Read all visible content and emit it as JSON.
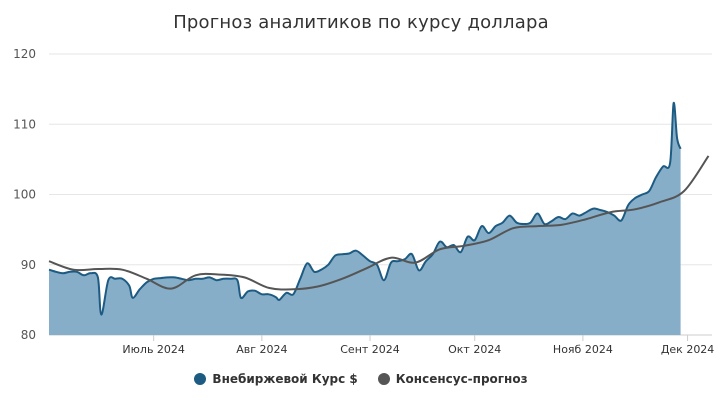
{
  "chart_data": {
    "type": "area",
    "title": "Прогноз аналитиков по курсу доллара",
    "ylim": [
      80,
      120
    ],
    "yticks": [
      80,
      90,
      100,
      110,
      120
    ],
    "xlim": [
      "2024-06-01",
      "2024-12-08"
    ],
    "xticks": [
      {
        "date": "2024-07-01",
        "label": "Июль 2024"
      },
      {
        "date": "2024-08-01",
        "label": "Авг 2024"
      },
      {
        "date": "2024-09-01",
        "label": "Сент 2024"
      },
      {
        "date": "2024-10-01",
        "label": "Окт 2024"
      },
      {
        "date": "2024-11-01",
        "label": "Нояб 2024"
      },
      {
        "date": "2024-12-01",
        "label": "Дек 2024"
      }
    ],
    "grid": true,
    "legend_position": "bottom",
    "series": [
      {
        "name": "Внебиржевой Курс $",
        "type": "area",
        "color": "#1d5b82",
        "fill": "#86aec8",
        "points": [
          [
            "2024-06-01",
            89.3
          ],
          [
            "2024-06-03",
            89.0
          ],
          [
            "2024-06-05",
            88.8
          ],
          [
            "2024-06-07",
            89.0
          ],
          [
            "2024-06-09",
            89.0
          ],
          [
            "2024-06-11",
            88.5
          ],
          [
            "2024-06-13",
            88.8
          ],
          [
            "2024-06-15",
            88.2
          ],
          [
            "2024-06-16",
            82.9
          ],
          [
            "2024-06-18",
            87.8
          ],
          [
            "2024-06-20",
            88.0
          ],
          [
            "2024-06-22",
            88.0
          ],
          [
            "2024-06-24",
            87.0
          ],
          [
            "2024-06-25",
            85.3
          ],
          [
            "2024-06-27",
            86.5
          ],
          [
            "2024-06-29",
            87.5
          ],
          [
            "2024-07-01",
            88.0
          ],
          [
            "2024-07-03",
            88.1
          ],
          [
            "2024-07-05",
            88.2
          ],
          [
            "2024-07-07",
            88.2
          ],
          [
            "2024-07-09",
            88.0
          ],
          [
            "2024-07-11",
            87.8
          ],
          [
            "2024-07-13",
            88.0
          ],
          [
            "2024-07-15",
            88.0
          ],
          [
            "2024-07-17",
            88.2
          ],
          [
            "2024-07-19",
            87.8
          ],
          [
            "2024-07-21",
            88.0
          ],
          [
            "2024-07-23",
            88.0
          ],
          [
            "2024-07-25",
            87.8
          ],
          [
            "2024-07-26",
            85.3
          ],
          [
            "2024-07-28",
            86.2
          ],
          [
            "2024-07-30",
            86.3
          ],
          [
            "2024-08-01",
            85.8
          ],
          [
            "2024-08-03",
            85.8
          ],
          [
            "2024-08-05",
            85.4
          ],
          [
            "2024-08-06",
            85.0
          ],
          [
            "2024-08-08",
            86.0
          ],
          [
            "2024-08-10",
            85.8
          ],
          [
            "2024-08-12",
            88.0
          ],
          [
            "2024-08-14",
            90.2
          ],
          [
            "2024-08-16",
            89.0
          ],
          [
            "2024-08-18",
            89.3
          ],
          [
            "2024-08-20",
            90.0
          ],
          [
            "2024-08-22",
            91.3
          ],
          [
            "2024-08-24",
            91.5
          ],
          [
            "2024-08-26",
            91.6
          ],
          [
            "2024-08-28",
            92.0
          ],
          [
            "2024-08-30",
            91.3
          ],
          [
            "2024-09-01",
            90.5
          ],
          [
            "2024-09-03",
            90.0
          ],
          [
            "2024-09-05",
            87.8
          ],
          [
            "2024-09-07",
            90.3
          ],
          [
            "2024-09-09",
            90.5
          ],
          [
            "2024-09-11",
            90.8
          ],
          [
            "2024-09-13",
            91.5
          ],
          [
            "2024-09-15",
            89.2
          ],
          [
            "2024-09-17",
            90.5
          ],
          [
            "2024-09-19",
            91.5
          ],
          [
            "2024-09-21",
            93.3
          ],
          [
            "2024-09-23",
            92.5
          ],
          [
            "2024-09-25",
            92.8
          ],
          [
            "2024-09-27",
            91.8
          ],
          [
            "2024-09-29",
            94.0
          ],
          [
            "2024-10-01",
            93.5
          ],
          [
            "2024-10-03",
            95.5
          ],
          [
            "2024-10-05",
            94.5
          ],
          [
            "2024-10-07",
            95.5
          ],
          [
            "2024-10-09",
            96.0
          ],
          [
            "2024-10-11",
            97.0
          ],
          [
            "2024-10-13",
            96.0
          ],
          [
            "2024-10-15",
            95.8
          ],
          [
            "2024-10-17",
            96.0
          ],
          [
            "2024-10-19",
            97.3
          ],
          [
            "2024-10-21",
            95.8
          ],
          [
            "2024-10-23",
            96.2
          ],
          [
            "2024-10-25",
            96.8
          ],
          [
            "2024-10-27",
            96.5
          ],
          [
            "2024-10-29",
            97.3
          ],
          [
            "2024-10-31",
            97.0
          ],
          [
            "2024-11-02",
            97.5
          ],
          [
            "2024-11-04",
            98.0
          ],
          [
            "2024-11-06",
            97.8
          ],
          [
            "2024-11-08",
            97.5
          ],
          [
            "2024-11-10",
            97.0
          ],
          [
            "2024-11-12",
            96.3
          ],
          [
            "2024-11-14",
            98.5
          ],
          [
            "2024-11-16",
            99.5
          ],
          [
            "2024-11-18",
            100.0
          ],
          [
            "2024-11-20",
            100.5
          ],
          [
            "2024-11-22",
            102.5
          ],
          [
            "2024-11-24",
            104.0
          ],
          [
            "2024-11-26",
            104.5
          ],
          [
            "2024-11-27",
            113.0
          ],
          [
            "2024-11-28",
            108.0
          ],
          [
            "2024-11-29",
            106.5
          ]
        ]
      },
      {
        "name": "Консенсус-прогноз",
        "type": "line",
        "color": "#555555",
        "points": [
          [
            "2024-06-01",
            90.5
          ],
          [
            "2024-06-08",
            89.3
          ],
          [
            "2024-06-15",
            89.4
          ],
          [
            "2024-06-22",
            89.3
          ],
          [
            "2024-06-29",
            88.0
          ],
          [
            "2024-07-06",
            86.6
          ],
          [
            "2024-07-13",
            88.5
          ],
          [
            "2024-07-20",
            88.6
          ],
          [
            "2024-07-27",
            88.2
          ],
          [
            "2024-08-03",
            86.7
          ],
          [
            "2024-08-10",
            86.5
          ],
          [
            "2024-08-17",
            86.9
          ],
          [
            "2024-08-24",
            88.0
          ],
          [
            "2024-08-31",
            89.5
          ],
          [
            "2024-09-07",
            91.0
          ],
          [
            "2024-09-14",
            90.3
          ],
          [
            "2024-09-21",
            92.2
          ],
          [
            "2024-09-28",
            92.7
          ],
          [
            "2024-10-05",
            93.5
          ],
          [
            "2024-10-12",
            95.2
          ],
          [
            "2024-10-19",
            95.5
          ],
          [
            "2024-10-26",
            95.7
          ],
          [
            "2024-11-02",
            96.5
          ],
          [
            "2024-11-09",
            97.5
          ],
          [
            "2024-11-16",
            97.9
          ],
          [
            "2024-11-23",
            98.9
          ],
          [
            "2024-11-30",
            100.5
          ],
          [
            "2024-12-07",
            105.5
          ]
        ]
      }
    ]
  }
}
